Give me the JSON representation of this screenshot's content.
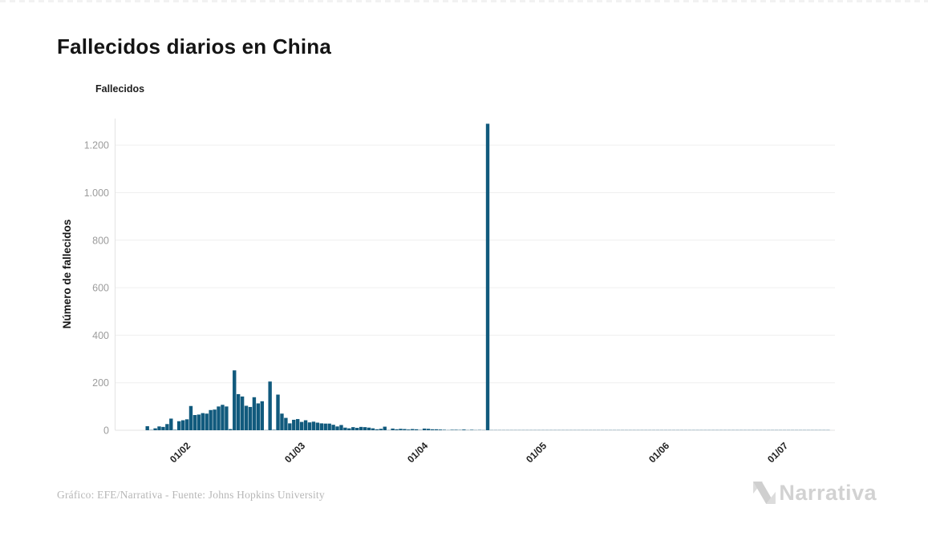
{
  "page": {
    "title": "Fallecidos diarios en China",
    "footer": "Gráfico: EFE/Narrativa - Fuente: Johns Hopkins University",
    "brand": "Narrativa"
  },
  "legend": {
    "label": "Fallecidos",
    "color": "#115a7d"
  },
  "chart_data": {
    "type": "bar",
    "title": "Fallecidos diarios en China",
    "series_name": "Fallecidos",
    "xlabel": "",
    "ylabel": "Número de fallecidos",
    "ylim": [
      0,
      1300
    ],
    "grid": true,
    "legend_position": "top-left",
    "bar_color": "#115a7d",
    "grid_color": "#efefef",
    "axis_color": "#e3e3e3",
    "tick_text_color": "#9c9c9c",
    "x_start_date": "2020-01-22",
    "x_frequency": "daily",
    "x_tick_labels": [
      "01/02",
      "01/03",
      "01/04",
      "01/05",
      "01/06",
      "01/07"
    ],
    "x_tick_day_index": [
      10,
      39,
      70,
      100,
      131,
      161
    ],
    "y_tick_labels": [
      "0",
      "200",
      "400",
      "600",
      "800",
      "1.000",
      "1.200"
    ],
    "y_tick_values": [
      0,
      200,
      400,
      600,
      800,
      1000,
      1200
    ],
    "max_value": 1290,
    "values": [
      17,
      1,
      8,
      16,
      14,
      26,
      49,
      2,
      38,
      42,
      46,
      102,
      64,
      66,
      72,
      70,
      85,
      87,
      100,
      107,
      100,
      5,
      252,
      152,
      142,
      103,
      98,
      139,
      113,
      122,
      0,
      205,
      2,
      150,
      70,
      52,
      29,
      44,
      47,
      35,
      42,
      33,
      36,
      32,
      29,
      28,
      28,
      23,
      16,
      22,
      11,
      8,
      13,
      10,
      14,
      13,
      11,
      8,
      4,
      6,
      15,
      0,
      7,
      4,
      6,
      5,
      3,
      5,
      4,
      1,
      7,
      6,
      4,
      4,
      3,
      2,
      0,
      2,
      2,
      1,
      3,
      0,
      2,
      0,
      1,
      0,
      1290,
      0,
      0,
      0,
      0,
      0,
      0,
      0,
      0,
      0,
      0,
      0,
      0,
      0,
      0,
      0,
      0,
      0,
      0,
      0,
      0,
      0,
      0,
      0,
      0,
      0,
      0,
      0,
      0,
      0,
      0,
      0,
      0,
      0,
      0,
      0,
      0,
      0,
      0,
      0,
      0,
      0,
      0,
      0,
      0,
      0,
      0,
      0,
      0,
      0,
      0,
      0,
      0,
      0,
      0,
      0,
      0,
      0,
      0,
      0,
      0,
      0,
      0,
      0,
      0,
      0,
      0,
      0,
      0,
      0,
      0,
      0,
      0,
      0,
      0,
      0,
      0,
      0,
      0,
      0,
      0,
      0,
      0,
      0,
      0,
      0,
      0
    ]
  }
}
